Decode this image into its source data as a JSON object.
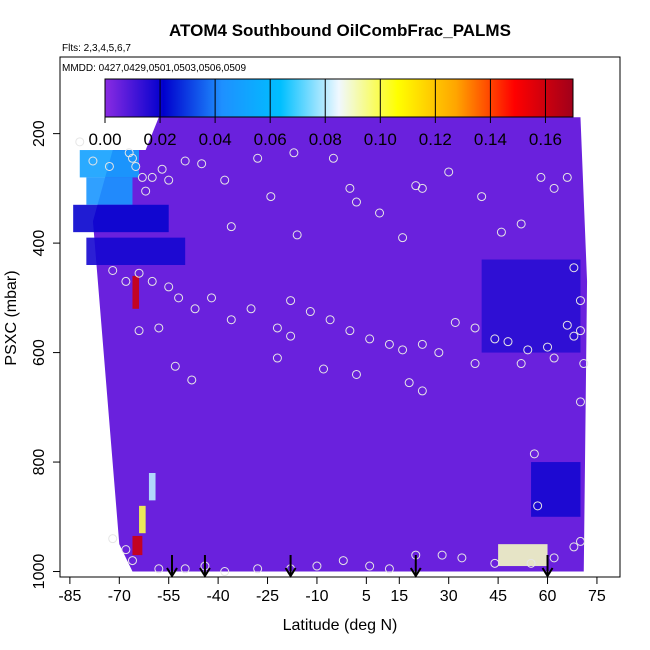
{
  "chart_data": {
    "type": "heatmap",
    "title": "ATOM4 Southbound OilCombFrac_PALMS",
    "subtitle_flights": "Flts: 2,3,4,5,6,7",
    "subtitle_dates": "MMDD: 0427,0429,0501,0503,0506,0509",
    "xlabel": "Latitude (deg N)",
    "ylabel": "PSXC (mbar)",
    "xlim": [
      -88,
      82
    ],
    "ylim": [
      1010,
      60
    ],
    "y_reversed": true,
    "x_ticks": [
      -85,
      -70,
      -55,
      -40,
      -25,
      -10,
      5,
      15,
      30,
      45,
      60,
      75
    ],
    "y_ticks": [
      200,
      400,
      600,
      800,
      1000
    ],
    "colorbar": {
      "range": [
        0,
        0.17
      ],
      "ticks": [
        "0.00",
        "0.02",
        "0.04",
        "0.06",
        "0.08",
        "0.10",
        "0.12",
        "0.14",
        "0.16"
      ],
      "colors": [
        "#8a2be2",
        "#0000cd",
        "#1e90ff",
        "#00bfff",
        "#f0f8ff",
        "#ffff00",
        "#ffa500",
        "#ff0000",
        "#a0001a"
      ]
    },
    "background_value": 0.005,
    "data_extent": {
      "lat_top": [
        -72,
        70
      ],
      "lat_bottom": [
        -66,
        71
      ],
      "p_top": 170,
      "p_bottom": 1000
    },
    "features": [
      {
        "lat": [
          -82,
          -64
        ],
        "p": [
          230,
          280
        ],
        "value": 0.05
      },
      {
        "lat": [
          -80,
          -66
        ],
        "p": [
          280,
          330
        ],
        "value": 0.045
      },
      {
        "lat": [
          -84,
          -55
        ],
        "p": [
          330,
          380
        ],
        "value": 0.02
      },
      {
        "lat": [
          -80,
          -50
        ],
        "p": [
          390,
          440
        ],
        "value": 0.018
      },
      {
        "lat": [
          -66,
          -64
        ],
        "p": [
          460,
          520
        ],
        "value": 0.16
      },
      {
        "lat": [
          -66,
          -63
        ],
        "p": [
          935,
          970
        ],
        "value": 0.16
      },
      {
        "lat": [
          -64,
          -62
        ],
        "p": [
          880,
          930
        ],
        "value": 0.1
      },
      {
        "lat": [
          -61,
          -59
        ],
        "p": [
          820,
          870
        ],
        "value": 0.08
      },
      {
        "lat": [
          45,
          60
        ],
        "p": [
          950,
          990
        ],
        "value": 0.09
      },
      {
        "lat": [
          40,
          70
        ],
        "p": [
          430,
          600
        ],
        "value": 0.015
      },
      {
        "lat": [
          55,
          70
        ],
        "p": [
          800,
          900
        ],
        "value": 0.018
      }
    ],
    "sample_points": [
      [
        -82,
        215
      ],
      [
        -78,
        250
      ],
      [
        -73,
        260
      ],
      [
        -67,
        235
      ],
      [
        -66,
        245
      ],
      [
        -65,
        260
      ],
      [
        -63,
        280
      ],
      [
        -57,
        265
      ],
      [
        -55,
        285
      ],
      [
        -60,
        280
      ],
      [
        -62,
        305
      ],
      [
        -50,
        250
      ],
      [
        -45,
        255
      ],
      [
        -38,
        285
      ],
      [
        -36,
        370
      ],
      [
        -28,
        245
      ],
      [
        -24,
        315
      ],
      [
        -17,
        235
      ],
      [
        -16,
        385
      ],
      [
        -5,
        245
      ],
      [
        0,
        300
      ],
      [
        2,
        325
      ],
      [
        9,
        345
      ],
      [
        16,
        390
      ],
      [
        20,
        295
      ],
      [
        22,
        300
      ],
      [
        30,
        270
      ],
      [
        40,
        315
      ],
      [
        46,
        380
      ],
      [
        52,
        365
      ],
      [
        58,
        280
      ],
      [
        62,
        300
      ],
      [
        66,
        280
      ],
      [
        -72,
        450
      ],
      [
        -68,
        470
      ],
      [
        -64,
        455
      ],
      [
        -60,
        470
      ],
      [
        -55,
        480
      ],
      [
        -52,
        500
      ],
      [
        -47,
        520
      ],
      [
        -42,
        500
      ],
      [
        -36,
        540
      ],
      [
        -30,
        520
      ],
      [
        -22,
        555
      ],
      [
        -18,
        505
      ],
      [
        -12,
        525
      ],
      [
        -6,
        540
      ],
      [
        0,
        560
      ],
      [
        6,
        575
      ],
      [
        12,
        585
      ],
      [
        16,
        595
      ],
      [
        22,
        585
      ],
      [
        27,
        600
      ],
      [
        32,
        545
      ],
      [
        38,
        555
      ],
      [
        44,
        575
      ],
      [
        48,
        580
      ],
      [
        54,
        595
      ],
      [
        60,
        590
      ],
      [
        66,
        550
      ],
      [
        68,
        570
      ],
      [
        -64,
        560
      ],
      [
        -58,
        555
      ],
      [
        -53,
        625
      ],
      [
        -48,
        650
      ],
      [
        -22,
        610
      ],
      [
        -8,
        630
      ],
      [
        2,
        640
      ],
      [
        18,
        655
      ],
      [
        22,
        670
      ],
      [
        38,
        620
      ],
      [
        52,
        620
      ],
      [
        62,
        610
      ],
      [
        70,
        505
      ],
      [
        70,
        560
      ],
      [
        -72,
        940
      ],
      [
        -68,
        960
      ],
      [
        -66,
        980
      ],
      [
        -58,
        995
      ],
      [
        -50,
        995
      ],
      [
        -44,
        990
      ],
      [
        -38,
        1000
      ],
      [
        -28,
        995
      ],
      [
        -18,
        995
      ],
      [
        -10,
        990
      ],
      [
        -2,
        980
      ],
      [
        6,
        990
      ],
      [
        12,
        995
      ],
      [
        20,
        970
      ],
      [
        28,
        970
      ],
      [
        34,
        975
      ],
      [
        44,
        985
      ],
      [
        55,
        985
      ],
      [
        62,
        975
      ],
      [
        68,
        955
      ],
      [
        70,
        945
      ],
      [
        56,
        785
      ],
      [
        57,
        880
      ],
      [
        70,
        690
      ],
      [
        71,
        620
      ],
      [
        68,
        445
      ],
      [
        -18,
        570
      ]
    ],
    "flight_arrows_lat": [
      -54,
      -44,
      -18,
      20,
      60
    ]
  }
}
